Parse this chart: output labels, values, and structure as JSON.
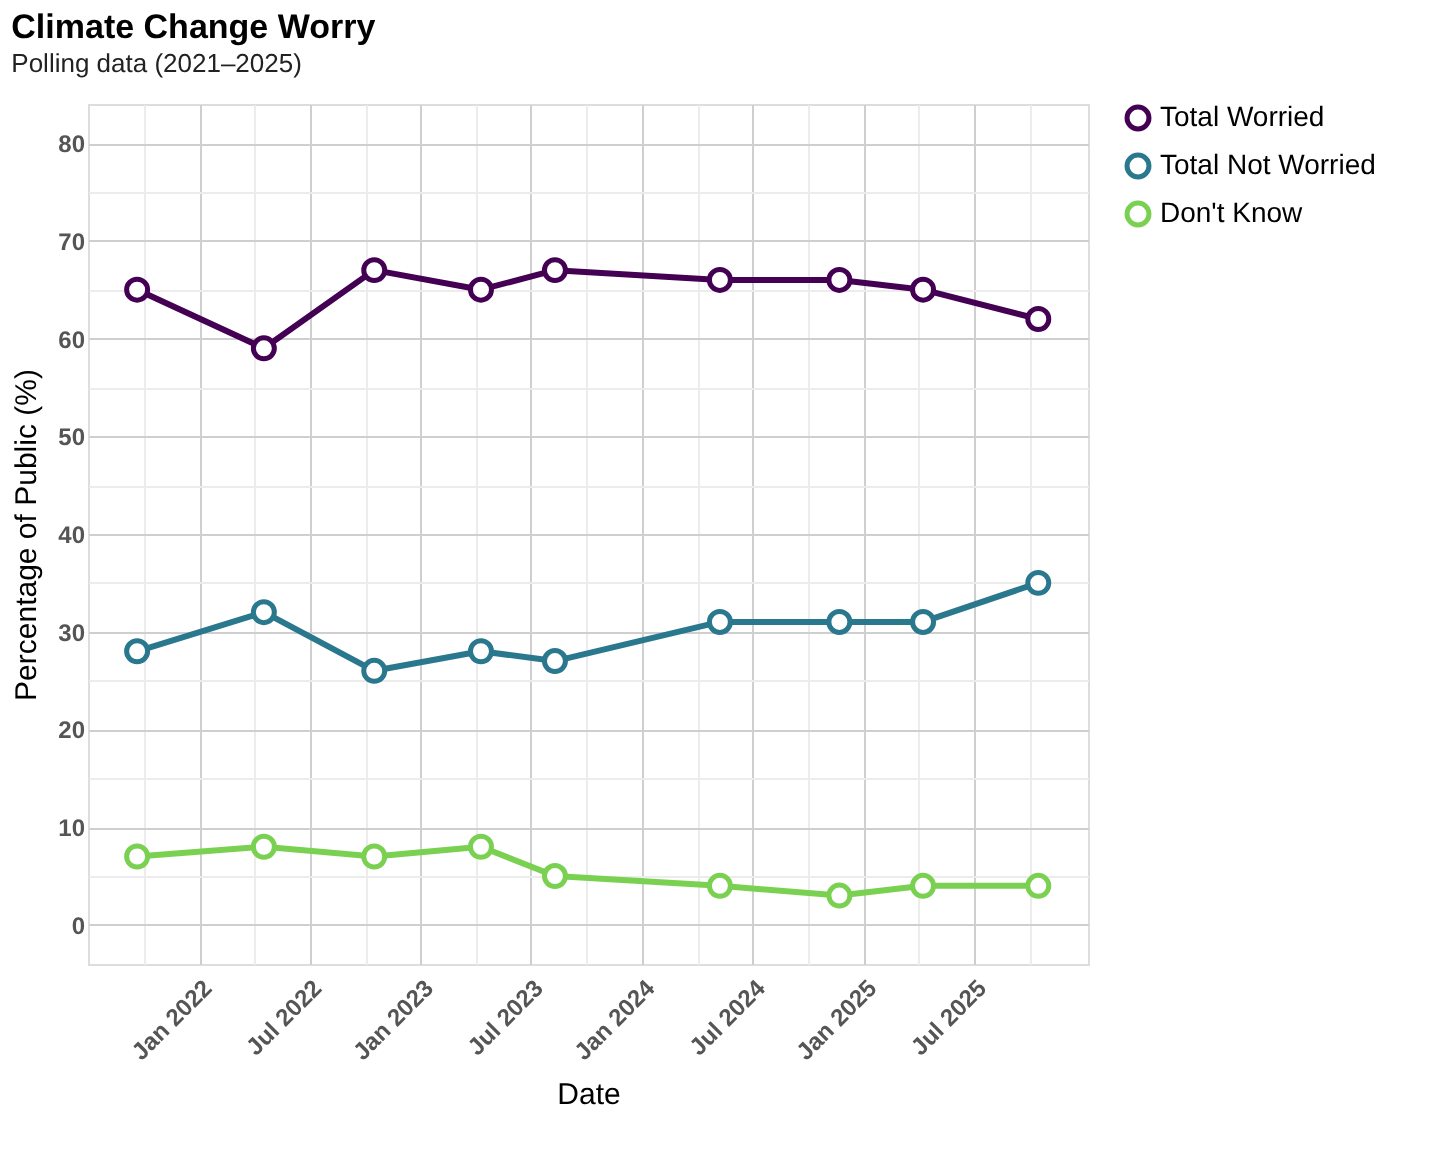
{
  "chart_data": {
    "type": "line",
    "title": "Climate Change Worry",
    "subtitle": "Polling data (2021–2025)",
    "xlabel": "Date",
    "ylabel": "Percentage of Public (%)",
    "x": [
      "2021-09-20",
      "2022-04-17",
      "2022-10-16",
      "2023-04-10",
      "2023-08-10",
      "2024-05-08",
      "2024-11-21",
      "2025-04-08",
      "2025-10-15"
    ],
    "series": [
      {
        "name": "Total Worried",
        "color": "#440154",
        "values": [
          65,
          59,
          67,
          65,
          67,
          66,
          66,
          65,
          62
        ]
      },
      {
        "name": "Total Not Worried",
        "color": "#2a788e",
        "values": [
          28,
          32,
          26,
          28,
          27,
          31,
          31,
          31,
          35
        ]
      },
      {
        "name": "Don't Know",
        "color": "#7ad151",
        "values": [
          7,
          8,
          7,
          8,
          5,
          4,
          3,
          4,
          4
        ]
      }
    ],
    "xlim": [
      "2021-07-01",
      "2026-01-05"
    ],
    "xticks": [
      {
        "value": "2021-10-01",
        "label": null
      },
      {
        "value": "2022-01-01",
        "label": "Jan 2022"
      },
      {
        "value": "2022-04-01",
        "label": null
      },
      {
        "value": "2022-07-01",
        "label": "Jul 2022"
      },
      {
        "value": "2022-10-01",
        "label": null
      },
      {
        "value": "2023-01-01",
        "label": "Jan 2023"
      },
      {
        "value": "2023-04-01",
        "label": null
      },
      {
        "value": "2023-07-01",
        "label": "Jul 2023"
      },
      {
        "value": "2023-10-01",
        "label": null
      },
      {
        "value": "2024-01-01",
        "label": "Jan 2024"
      },
      {
        "value": "2024-04-01",
        "label": null
      },
      {
        "value": "2024-07-01",
        "label": "Jul 2024"
      },
      {
        "value": "2024-10-01",
        "label": null
      },
      {
        "value": "2025-01-01",
        "label": "Jan 2025"
      },
      {
        "value": "2025-04-01",
        "label": null
      },
      {
        "value": "2025-07-01",
        "label": "Jul 2025"
      },
      {
        "value": "2025-10-01",
        "label": null
      }
    ],
    "ylim": [
      -4,
      84
    ],
    "yticks": [
      0,
      {
        "value": 5,
        "label": null
      },
      10,
      {
        "value": 15,
        "label": null
      },
      20,
      {
        "value": 25,
        "label": null
      },
      30,
      {
        "value": 35,
        "label": null
      },
      40,
      {
        "value": 45,
        "label": null
      },
      50,
      {
        "value": 55,
        "label": null
      },
      60,
      {
        "value": 65,
        "label": null
      },
      70,
      {
        "value": 75,
        "label": null
      },
      80
    ],
    "grid": true,
    "legend": "right",
    "marker": "circle",
    "line_style": "solid"
  }
}
